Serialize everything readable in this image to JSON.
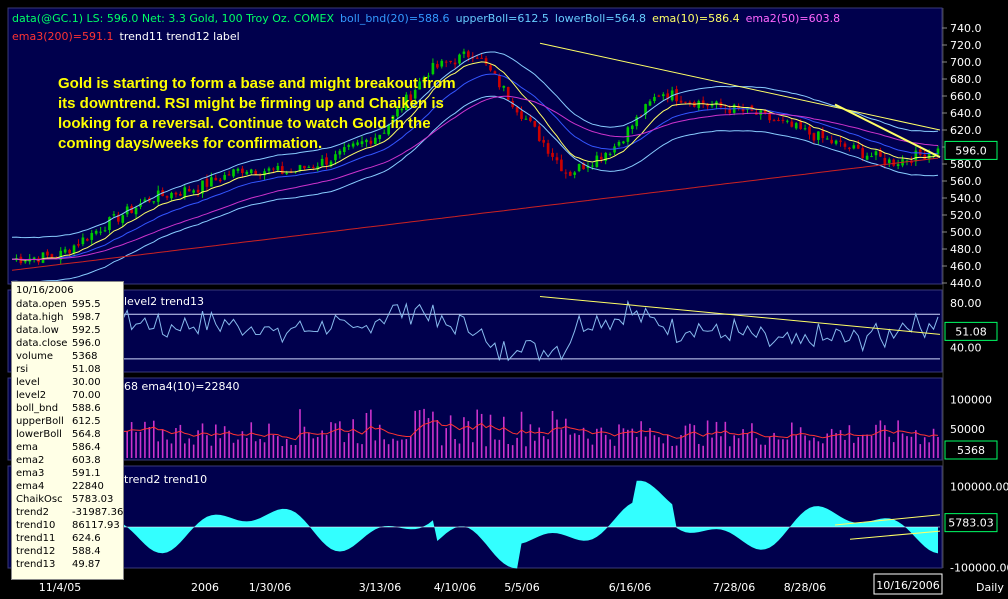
{
  "header": {
    "line1": [
      {
        "text": "data(@GC.1) LS: 596.0  Net: 3.3  Gold, 100 Troy Oz. COMEX",
        "color": "#00ff66"
      },
      {
        "text": "boll_bnd(20)=588.6",
        "color": "#3399ff"
      },
      {
        "text": "upperBoll=612.5",
        "color": "#66ccff"
      },
      {
        "text": "lowerBoll=564.8",
        "color": "#66ccff"
      },
      {
        "text": "ema(10)=586.4",
        "color": "#ffff66"
      },
      {
        "text": "ema2(50)=603.8",
        "color": "#ff66ff"
      }
    ],
    "line2": [
      {
        "text": "ema3(200)=591.1",
        "color": "#ff3333"
      },
      {
        "text": "trend11 trend12 label",
        "color": "#ffffff"
      }
    ]
  },
  "annotation": "Gold is starting to form a base and might breakout from its downtrend. RSI might be firming up and Chaiken is looking for a reversal. Continue to watch Gold in the coming days/weeks for confirmation.",
  "panel_labels": {
    "rsi": "level2 trend13",
    "volume": "68 ema4(10)=22840",
    "chaikin": "trend2 trend10"
  },
  "price_badges": {
    "price": "596.0",
    "rsi": "51.08",
    "volume": "5368",
    "chaikin": "5783.03"
  },
  "x_axis": {
    "labels": [
      "11/4/05",
      "2006",
      "1/30/06",
      "3/13/06",
      "4/10/06",
      "5/5/06",
      "6/16/06",
      "7/28/06",
      "8/28/06"
    ],
    "current_date": "10/16/2006",
    "interval": "Daily"
  },
  "tooltip": {
    "date": "10/16/2006",
    "rows": [
      [
        "data.open",
        "595.5"
      ],
      [
        "data.high",
        "598.7"
      ],
      [
        "data.low",
        "592.5"
      ],
      [
        "data.close",
        "596.0"
      ],
      [
        "volume",
        "5368"
      ],
      [
        "rsi",
        "51.08"
      ],
      [
        "level",
        "30.00"
      ],
      [
        "level2",
        "70.00"
      ],
      [
        "boll_bnd",
        "588.6"
      ],
      [
        "upperBoll",
        "612.5"
      ],
      [
        "lowerBoll",
        "564.8"
      ],
      [
        "ema",
        "586.4"
      ],
      [
        "ema2",
        "603.8"
      ],
      [
        "ema3",
        "591.1"
      ],
      [
        "ema4",
        "22840"
      ],
      [
        "ChaikOsc",
        "5783.03"
      ],
      [
        "trend2",
        "-31987.36"
      ],
      [
        "trend10",
        "86117.93"
      ],
      [
        "trend11",
        "624.6"
      ],
      [
        "trend12",
        "588.4"
      ],
      [
        "trend13",
        "49.87"
      ]
    ]
  },
  "colors": {
    "bg": "#000000",
    "panel": "#00004d",
    "up": "#00cc00",
    "down": "#cc0000",
    "ema": "#ffff66",
    "ema2": "#cc33cc",
    "ema3": "#cc2222",
    "boll": "#88ccff",
    "trend": "#ffff66",
    "rsi": "#88bbee",
    "vol": "#cc33cc",
    "chaikin": "#33ffff"
  },
  "chart_data": [
    {
      "type": "candlestick",
      "title": "data(@GC.1) Gold, 100 Troy Oz. COMEX",
      "ylim": [
        440,
        740
      ],
      "yticks": [
        440,
        460,
        480,
        500,
        520,
        540,
        560,
        580,
        600,
        620,
        640,
        660,
        680,
        700,
        720,
        740
      ],
      "x_dates": [
        "11/4/05",
        "2006",
        "1/30/06",
        "3/13/06",
        "4/10/06",
        "5/5/06",
        "6/16/06",
        "7/28/06",
        "8/28/06",
        "10/16/2006"
      ],
      "close_approx": [
        468,
        472,
        508,
        540,
        552,
        575,
        570,
        588,
        618,
        690,
        712,
        640,
        568,
        600,
        665,
        650,
        640,
        620,
        600,
        582,
        596
      ],
      "last": {
        "open": 595.5,
        "high": 598.7,
        "low": 592.5,
        "close": 596.0
      }
    },
    {
      "type": "line",
      "name": "rsi",
      "yticks": [
        40,
        80
      ],
      "last": 51.08,
      "level": 30,
      "level2": 70
    },
    {
      "type": "bar",
      "name": "volume",
      "yticks": [
        50000,
        100000
      ],
      "last": 5368,
      "ema4": 22840
    },
    {
      "type": "area",
      "name": "ChaikOsc",
      "yticks": [
        -100000,
        100000
      ],
      "last": 5783.03
    }
  ]
}
